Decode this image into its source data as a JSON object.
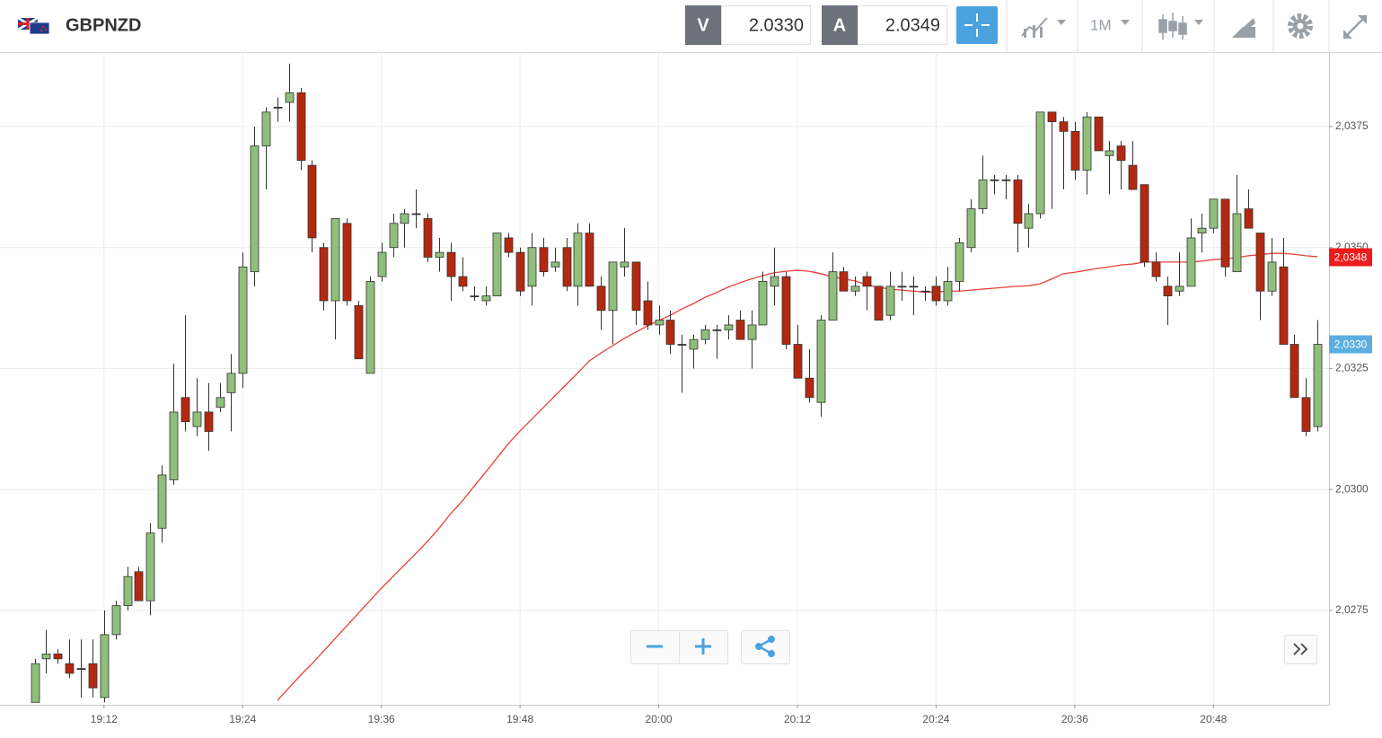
{
  "header": {
    "symbol": "GBPNZD",
    "bid_label": "V",
    "bid": "2.0330",
    "ask_label": "A",
    "ask": "2.0349",
    "timeframe": "1M"
  },
  "chart_data": {
    "type": "candlestick",
    "x": [
      "19:06",
      "19:07",
      "19:08",
      "19:09",
      "19:10",
      "19:11",
      "19:12",
      "19:13",
      "19:14",
      "19:15",
      "19:16",
      "19:17",
      "19:18",
      "19:19",
      "19:20",
      "19:21",
      "19:22",
      "19:23",
      "19:24",
      "19:25",
      "19:26",
      "19:27",
      "19:28",
      "19:29",
      "19:30",
      "19:31",
      "19:32",
      "19:33",
      "19:34",
      "19:35",
      "19:36",
      "19:37",
      "19:38",
      "19:39",
      "19:40",
      "19:41",
      "19:42",
      "19:43",
      "19:44",
      "19:45",
      "19:46",
      "19:47",
      "19:48",
      "19:49",
      "19:50",
      "19:51",
      "19:52",
      "19:53",
      "19:54",
      "19:55",
      "19:56",
      "19:57",
      "19:58",
      "19:59",
      "20:00",
      "20:01",
      "20:02",
      "20:03",
      "20:04",
      "20:05",
      "20:06",
      "20:07",
      "20:08",
      "20:09",
      "20:10",
      "20:11",
      "20:12",
      "20:13",
      "20:14",
      "20:15",
      "20:16",
      "20:17",
      "20:18",
      "20:19",
      "20:20",
      "20:21",
      "20:22",
      "20:23",
      "20:24",
      "20:25",
      "20:26",
      "20:27",
      "20:28",
      "20:29",
      "20:30",
      "20:31",
      "20:32",
      "20:33",
      "20:34",
      "20:35",
      "20:36",
      "20:37",
      "20:38",
      "20:39",
      "20:40",
      "20:41",
      "20:42",
      "20:43",
      "20:44",
      "20:45",
      "20:46",
      "20:47",
      "20:48",
      "20:49",
      "20:50",
      "20:51",
      "20:52",
      "20:53",
      "20:54",
      "20:55",
      "20:56",
      "20:57"
    ],
    "open": [
      2.0256,
      2.0265,
      2.0266,
      2.0264,
      2.0263,
      2.0264,
      2.0257,
      2.027,
      2.0276,
      2.0283,
      2.0277,
      2.0292,
      2.0302,
      2.0319,
      2.0313,
      2.0316,
      2.0317,
      2.032,
      2.0324,
      2.0345,
      2.0371,
      2.0379,
      2.038,
      2.0382,
      2.0367,
      2.035,
      2.0339,
      2.0355,
      2.0338,
      2.0324,
      2.0344,
      2.035,
      2.0355,
      2.0357,
      2.0356,
      2.0348,
      2.0349,
      2.0344,
      2.034,
      2.0339,
      2.034,
      2.0352,
      2.0349,
      2.0342,
      2.035,
      2.0346,
      2.035,
      2.0342,
      2.0353,
      2.0342,
      2.0337,
      2.0346,
      2.0347,
      2.0339,
      2.0334,
      2.0335,
      2.033,
      2.0329,
      2.0331,
      2.0333,
      2.0333,
      2.0335,
      2.0331,
      2.0334,
      2.0342,
      2.0344,
      2.033,
      2.0323,
      2.0318,
      2.0335,
      2.0345,
      2.0341,
      2.0344,
      2.0342,
      2.0336,
      2.0342,
      2.0342,
      2.0341,
      2.0342,
      2.0339,
      2.0343,
      2.035,
      2.0358,
      2.0364,
      2.0364,
      2.0364,
      2.0354,
      2.0357,
      2.0378,
      2.0376,
      2.0374,
      2.0366,
      2.0377,
      2.0369,
      2.0371,
      2.0367,
      2.0363,
      2.0347,
      2.0342,
      2.0341,
      2.0342,
      2.0353,
      2.0354,
      2.036,
      2.0345,
      2.0358,
      2.0353,
      2.0341,
      2.0346,
      2.033,
      2.0319,
      2.0313
    ],
    "high": [
      2.0265,
      2.0271,
      2.0267,
      2.0269,
      2.0269,
      2.0269,
      2.0275,
      2.0277,
      2.0284,
      2.0284,
      2.0293,
      2.0305,
      2.0326,
      2.0336,
      2.0323,
      2.0322,
      2.0322,
      2.0328,
      2.0349,
      2.0375,
      2.0379,
      2.0381,
      2.0388,
      2.0383,
      2.0368,
      2.0351,
      2.0356,
      2.0356,
      2.0339,
      2.0344,
      2.0351,
      2.0357,
      2.0358,
      2.0362,
      2.0357,
      2.0352,
      2.0351,
      2.0348,
      2.0342,
      2.0342,
      2.0353,
      2.0353,
      2.035,
      2.0353,
      2.0352,
      2.035,
      2.0352,
      2.0355,
      2.0355,
      2.0344,
      2.0347,
      2.0354,
      2.0347,
      2.0343,
      2.0338,
      2.0337,
      2.0332,
      2.0332,
      2.0334,
      2.0334,
      2.0336,
      2.0337,
      2.0337,
      2.0345,
      2.035,
      2.0345,
      2.0334,
      2.0329,
      2.0336,
      2.0349,
      2.0346,
      2.0344,
      2.0345,
      2.0342,
      2.0345,
      2.0345,
      2.0344,
      2.0342,
      2.0344,
      2.0346,
      2.0352,
      2.036,
      2.0369,
      2.0365,
      2.0365,
      2.0365,
      2.0359,
      2.0378,
      2.0378,
      2.0377,
      2.0376,
      2.0378,
      2.0377,
      2.0372,
      2.0372,
      2.0372,
      2.0363,
      2.0349,
      2.0344,
      2.0349,
      2.0356,
      2.0357,
      2.036,
      2.036,
      2.0365,
      2.0362,
      2.0353,
      2.0352,
      2.0352,
      2.0332,
      2.0323,
      2.0335
    ],
    "low": [
      2.0256,
      2.0262,
      2.0264,
      2.0261,
      2.0257,
      2.0257,
      2.0256,
      2.0269,
      2.0275,
      2.0277,
      2.0274,
      2.0289,
      2.0301,
      2.0312,
      2.0311,
      2.0308,
      2.0316,
      2.0312,
      2.0321,
      2.0342,
      2.0362,
      2.0376,
      2.0376,
      2.0366,
      2.0349,
      2.0337,
      2.0331,
      2.0338,
      2.0327,
      2.0324,
      2.0343,
      2.0348,
      2.035,
      2.0354,
      2.0347,
      2.0345,
      2.0339,
      2.0341,
      2.0339,
      2.0338,
      2.034,
      2.0348,
      2.034,
      2.0338,
      2.0344,
      2.0345,
      2.0341,
      2.0338,
      2.0342,
      2.0333,
      2.033,
      2.0344,
      2.0334,
      2.0333,
      2.0332,
      2.0328,
      2.032,
      2.0325,
      2.033,
      2.0327,
      2.0331,
      2.0331,
      2.0325,
      2.0334,
      2.0338,
      2.0329,
      2.0323,
      2.0318,
      2.0315,
      2.0335,
      2.0341,
      2.034,
      2.0337,
      2.0335,
      2.0335,
      2.0339,
      2.0336,
      2.0339,
      2.0338,
      2.0338,
      2.0341,
      2.0349,
      2.0357,
      2.0361,
      2.036,
      2.0349,
      2.035,
      2.0356,
      2.0358,
      2.0362,
      2.0364,
      2.0361,
      2.037,
      2.0361,
      2.0362,
      2.0362,
      2.0346,
      2.0343,
      2.0334,
      2.034,
      2.0342,
      2.0349,
      2.0353,
      2.0344,
      2.0345,
      2.0354,
      2.0335,
      2.034,
      2.033,
      2.0319,
      2.0311,
      2.0312
    ],
    "close": [
      2.0264,
      2.0266,
      2.0265,
      2.0262,
      2.0263,
      2.0259,
      2.027,
      2.0276,
      2.0282,
      2.0277,
      2.0291,
      2.0303,
      2.0316,
      2.0314,
      2.0316,
      2.0312,
      2.0319,
      2.0324,
      2.0346,
      2.0371,
      2.0378,
      2.0379,
      2.0382,
      2.0368,
      2.0352,
      2.0339,
      2.0356,
      2.0339,
      2.0327,
      2.0343,
      2.0349,
      2.0355,
      2.0357,
      2.0357,
      2.0348,
      2.0349,
      2.0344,
      2.0342,
      2.034,
      2.034,
      2.0353,
      2.0349,
      2.0341,
      2.035,
      2.0345,
      2.0347,
      2.0342,
      2.0353,
      2.0342,
      2.0337,
      2.0347,
      2.0347,
      2.0337,
      2.0334,
      2.0335,
      2.033,
      2.033,
      2.0331,
      2.0333,
      2.0333,
      2.0334,
      2.0331,
      2.0334,
      2.0343,
      2.0344,
      2.033,
      2.0323,
      2.0319,
      2.0335,
      2.0345,
      2.0341,
      2.0342,
      2.0342,
      2.0335,
      2.0342,
      2.0342,
      2.0342,
      2.0341,
      2.0339,
      2.0343,
      2.0351,
      2.0358,
      2.0364,
      2.0364,
      2.0364,
      2.0355,
      2.0357,
      2.0378,
      2.0376,
      2.0374,
      2.0366,
      2.0377,
      2.037,
      2.037,
      2.0368,
      2.0362,
      2.0347,
      2.0344,
      2.034,
      2.0342,
      2.0352,
      2.0354,
      2.036,
      2.0346,
      2.0357,
      2.0354,
      2.0341,
      2.0347,
      2.033,
      2.0319,
      2.0312,
      2.033
    ],
    "up_color": "#8fbf7a",
    "down_color": "#b4280f",
    "overlay": {
      "color": "#e8403a",
      "values": [
        null,
        null,
        null,
        null,
        null,
        null,
        null,
        null,
        null,
        null,
        null,
        null,
        null,
        null,
        null,
        null,
        null,
        null,
        null,
        null,
        null,
        2.02564,
        2.0259,
        2.02616,
        2.0264,
        2.02666,
        2.02692,
        2.02718,
        2.02744,
        2.0277,
        2.02796,
        2.0282,
        2.02844,
        2.02868,
        2.02893,
        2.0292,
        2.0295,
        2.02976,
        2.03006,
        2.03035,
        2.03065,
        2.03095,
        2.03121,
        2.03145,
        2.03169,
        2.03193,
        2.03217,
        2.03241,
        2.03266,
        2.03282,
        2.03297,
        2.03312,
        2.03325,
        2.03338,
        2.03349,
        2.0336,
        2.03373,
        2.03384,
        2.03397,
        2.03407,
        2.03418,
        2.03427,
        2.03435,
        2.03442,
        2.03448,
        2.03451,
        2.03453,
        2.03451,
        2.03446,
        2.0344,
        2.03435,
        2.03431,
        2.03423,
        2.03418,
        2.03414,
        2.03412,
        2.0341,
        2.03408,
        2.03408,
        2.0341,
        2.0341,
        2.03412,
        2.03414,
        2.03416,
        2.03418,
        2.0342,
        2.03421,
        2.03425,
        2.03435,
        2.03446,
        2.03449,
        2.03453,
        2.03457,
        2.0346,
        2.03464,
        2.03466,
        2.0347,
        2.0347,
        2.0347,
        2.0347,
        2.0347,
        2.03472,
        2.03475,
        2.03477,
        2.03479,
        2.03483,
        2.03485,
        2.03488,
        2.03488,
        2.03486,
        2.03483,
        2.03481
      ]
    },
    "xlim": [
      "19:03",
      "20:58"
    ],
    "xticks": [
      "19:12",
      "19:24",
      "19:36",
      "19:48",
      "20:00",
      "20:12",
      "20:24",
      "20:36",
      "20:48"
    ],
    "ylim": [
      2.02555,
      2.03904
    ],
    "yticks": [
      {
        "value": 2.0275,
        "label": "2,0275"
      },
      {
        "value": 2.03,
        "label": "2,0300"
      },
      {
        "value": 2.0325,
        "label": "2,0325"
      },
      {
        "value": 2.035,
        "label": "2,0350"
      },
      {
        "value": 2.0375,
        "label": "2,0375"
      }
    ],
    "grid": true,
    "price_labels": [
      {
        "value": 2.0348,
        "label": "2,0348",
        "color": "#ee1c1c"
      },
      {
        "value": 2.033,
        "label": "2,0330",
        "color": "#5aaee0"
      }
    ]
  }
}
